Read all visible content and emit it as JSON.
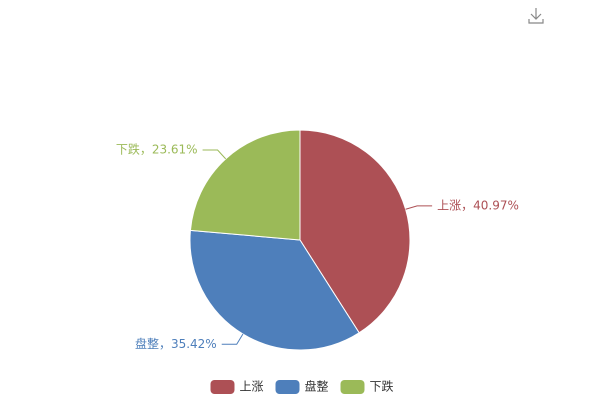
{
  "chart_data": {
    "type": "pie",
    "categories": [
      "上涨",
      "盘整",
      "下跌"
    ],
    "values": [
      40.97,
      35.42,
      23.61
    ],
    "value_labels": [
      "上涨，40.97%",
      "盘整，35.42%",
      "下跌，23.61%"
    ],
    "colors": [
      "#ad5055",
      "#4e7fbb",
      "#9bba58"
    ],
    "legend": "bottom"
  }
}
